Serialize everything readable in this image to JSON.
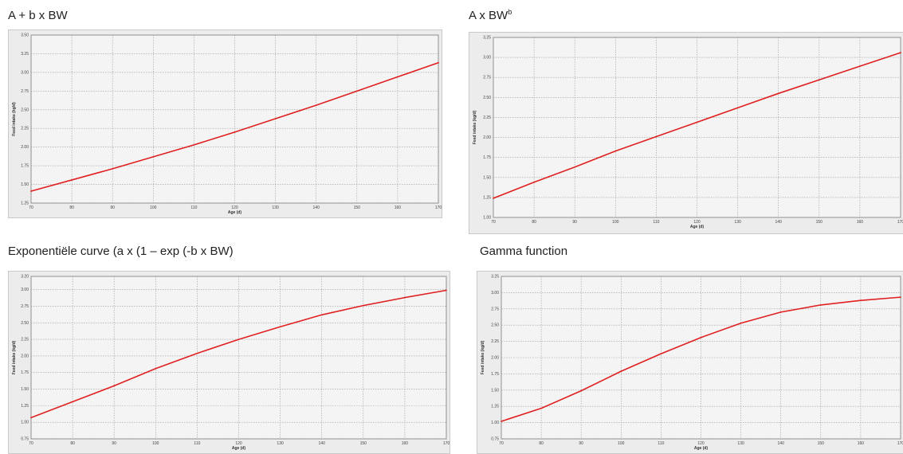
{
  "panels": [
    {
      "title_main": "A + b x BW",
      "title_sup": ""
    },
    {
      "title_main": "A x BW",
      "title_sup": "b"
    },
    {
      "title_main": "Exponentiële curve (a x (1 – exp (-b x BW)",
      "title_sup": ""
    },
    {
      "title_main": "Gamma function",
      "title_sup": ""
    }
  ],
  "chart_data": [
    {
      "type": "line",
      "title": "A + b x BW",
      "xlabel": "Age (d)",
      "ylabel": "Feed intake (kg/d)",
      "xlim": [
        70,
        170
      ],
      "ylim": [
        1.25,
        3.5
      ],
      "x_ticks": [
        "70",
        "80",
        "90",
        "100",
        "110",
        "120",
        "130",
        "140",
        "150",
        "160",
        "170"
      ],
      "y_ticks": [
        "1.25",
        "1.50",
        "1.75",
        "2.00",
        "2.25",
        "2.50",
        "2.75",
        "3.00",
        "3.25",
        "3.50"
      ],
      "grid": true,
      "line_color": "#e02020",
      "series": [
        {
          "x": [
            70,
            80,
            90,
            100,
            110,
            120,
            130,
            140,
            150,
            160,
            170
          ],
          "y": [
            1.41,
            1.56,
            1.71,
            1.87,
            2.03,
            2.2,
            2.38,
            2.56,
            2.75,
            2.94,
            3.13
          ]
        }
      ]
    },
    {
      "type": "line",
      "title": "A x BWb",
      "xlabel": "Age (d)",
      "ylabel": "Feed intake (kg/d)",
      "xlim": [
        70,
        170
      ],
      "ylim": [
        1.0,
        3.25
      ],
      "x_ticks": [
        "70",
        "80",
        "90",
        "100",
        "110",
        "120",
        "130",
        "140",
        "150",
        "160",
        "170"
      ],
      "y_ticks": [
        "1.00",
        "1.25",
        "1.50",
        "1.75",
        "2.00",
        "2.25",
        "2.50",
        "2.75",
        "3.00",
        "3.25"
      ],
      "grid": true,
      "line_color": "#e02020",
      "series": [
        {
          "x": [
            70,
            80,
            90,
            100,
            110,
            120,
            130,
            140,
            150,
            160,
            170
          ],
          "y": [
            1.24,
            1.44,
            1.63,
            1.83,
            2.01,
            2.19,
            2.37,
            2.55,
            2.72,
            2.89,
            3.06
          ]
        }
      ]
    },
    {
      "type": "line",
      "title": "Exponentiële curve (a x (1 – exp (-b x BW)",
      "xlabel": "Age (d)",
      "ylabel": "Feed intake (kg/d)",
      "xlim": [
        70,
        170
      ],
      "ylim": [
        0.75,
        3.2
      ],
      "x_ticks": [
        "70",
        "80",
        "90",
        "100",
        "110",
        "120",
        "130",
        "140",
        "150",
        "160",
        "170"
      ],
      "y_ticks": [
        "0.75",
        "1.00",
        "1.25",
        "1.50",
        "1.75",
        "2.00",
        "2.25",
        "2.50",
        "2.75",
        "3.00",
        "3.20"
      ],
      "grid": true,
      "line_color": "#e02020",
      "series": [
        {
          "x": [
            70,
            80,
            90,
            100,
            110,
            120,
            130,
            140,
            150,
            160,
            170
          ],
          "y": [
            1.07,
            1.31,
            1.55,
            1.81,
            2.04,
            2.25,
            2.44,
            2.62,
            2.76,
            2.88,
            2.99
          ]
        }
      ]
    },
    {
      "type": "line",
      "title": "Gamma function",
      "xlabel": "Age (d)",
      "ylabel": "Feed intake (kg/d)",
      "xlim": [
        70,
        170
      ],
      "ylim": [
        0.75,
        3.25
      ],
      "x_ticks": [
        "70",
        "80",
        "90",
        "100",
        "110",
        "120",
        "130",
        "140",
        "150",
        "160",
        "170"
      ],
      "y_ticks": [
        "0.75",
        "1.00",
        "1.25",
        "1.50",
        "1.75",
        "2.00",
        "2.25",
        "2.50",
        "2.75",
        "3.00",
        "3.25"
      ],
      "grid": true,
      "line_color": "#e02020",
      "series": [
        {
          "x": [
            70,
            80,
            90,
            100,
            110,
            120,
            130,
            140,
            150,
            160,
            170
          ],
          "y": [
            1.02,
            1.22,
            1.49,
            1.79,
            2.06,
            2.31,
            2.53,
            2.7,
            2.81,
            2.88,
            2.93
          ]
        }
      ]
    }
  ]
}
